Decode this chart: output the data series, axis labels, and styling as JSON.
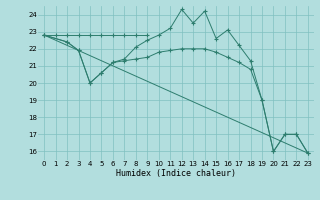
{
  "xlabel": "Humidex (Indice chaleur)",
  "bg_color": "#b2dede",
  "grid_color": "#80c0c0",
  "line_color": "#2d7d6e",
  "xlim": [
    -0.5,
    23.5
  ],
  "ylim": [
    15.5,
    24.5
  ],
  "xticks": [
    0,
    1,
    2,
    3,
    4,
    5,
    6,
    7,
    8,
    9,
    10,
    11,
    12,
    13,
    14,
    15,
    16,
    17,
    18,
    19,
    20,
    21,
    22,
    23
  ],
  "yticks": [
    16,
    17,
    18,
    19,
    20,
    21,
    22,
    23,
    24
  ],
  "series1_x": [
    0,
    1,
    2,
    3,
    4,
    5,
    6,
    7,
    8,
    9
  ],
  "series1_y": [
    22.8,
    22.8,
    22.8,
    22.8,
    22.8,
    22.8,
    22.8,
    22.8,
    22.8,
    22.8
  ],
  "series2_x": [
    0,
    2,
    3,
    4,
    5,
    6,
    7,
    8,
    9,
    10,
    11,
    12,
    13,
    14,
    15,
    16,
    17,
    18,
    19,
    20,
    21,
    22,
    23
  ],
  "series2_y": [
    22.8,
    22.4,
    21.9,
    20.0,
    20.6,
    21.2,
    21.4,
    22.1,
    22.5,
    22.8,
    23.2,
    24.3,
    23.5,
    24.2,
    22.6,
    23.1,
    22.2,
    21.3,
    19.0,
    16.0,
    17.0,
    17.0,
    15.9
  ],
  "series3_x": [
    0,
    2,
    3,
    4,
    5,
    6,
    7,
    8,
    9,
    10,
    11,
    12,
    13,
    14,
    15,
    16,
    17,
    18,
    19,
    20,
    21,
    22,
    23
  ],
  "series3_y": [
    22.8,
    22.4,
    21.9,
    20.0,
    20.6,
    21.2,
    21.3,
    21.4,
    21.5,
    21.8,
    21.9,
    22.0,
    22.0,
    22.0,
    21.8,
    21.5,
    21.2,
    20.8,
    19.0,
    16.0,
    17.0,
    17.0,
    15.9
  ],
  "series4_x": [
    0,
    23
  ],
  "series4_y": [
    22.8,
    15.9
  ]
}
